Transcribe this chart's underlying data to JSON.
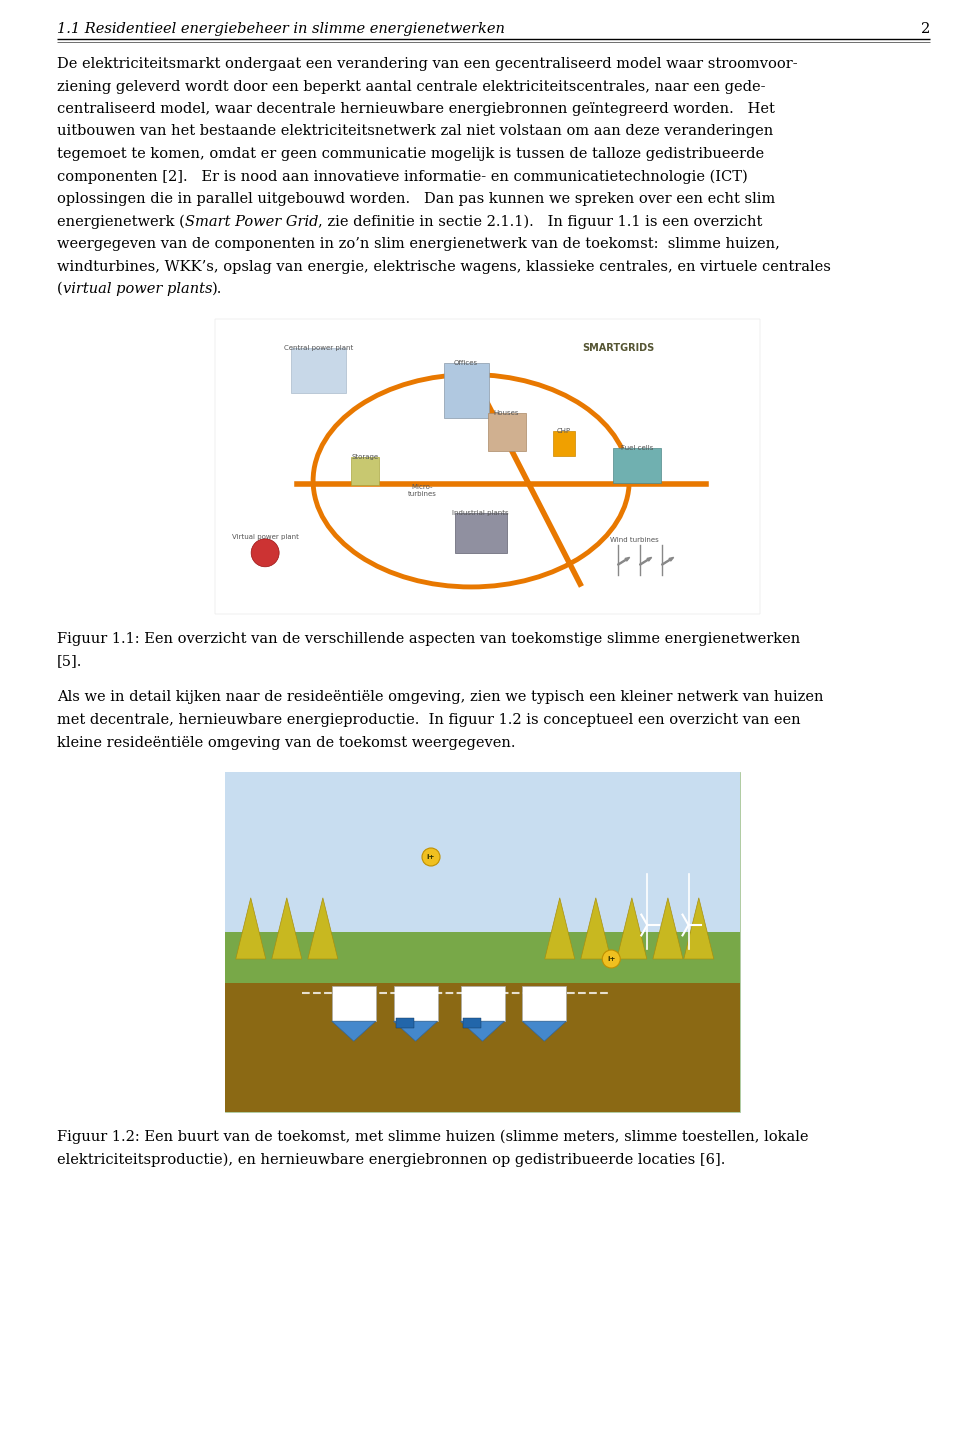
{
  "bg_color": "#ffffff",
  "header_title": "1.1 Residentieel energiebeheer in slimme energienetwerken",
  "header_page": "2",
  "header_fontsize": 10.5,
  "body_fontsize": 10.5,
  "para1_lines": [
    [
      "De elektriciteitsmarkt ondergaat een verandering van een gecentraliseerd model waar stroomvoor-",
      false
    ],
    [
      "ziening geleverd wordt door een beperkt aantal centrale elektriciteitscentrales, naar een gede-",
      false
    ],
    [
      "centraliseerd model, waar decentrale hernieuwbare energiebronnen geïntegreerd worden.   Het",
      false
    ],
    [
      "uitbouwen van het bestaande elektriciteitsnetwerk zal niet volstaan om aan deze veranderingen",
      false
    ],
    [
      "tegemoet te komen, omdat er geen communicatie mogelijk is tussen de talloze gedistribueerde",
      false
    ],
    [
      "componenten [2].   Er is nood aan innovatieve informatie- en communicatietechnologie (ICT)",
      false
    ],
    [
      "oplossingen die in parallel uitgebouwd worden.   Dan pas kunnen we spreken over een echt slim",
      false
    ]
  ],
  "para1_italic_lines": [
    [
      [
        "energienetwerk (",
        false
      ],
      [
        "Smart Power Grid",
        true
      ],
      [
        ", zie definitie in sectie 2.1.1).   In figuur 1.1 is een overzicht",
        false
      ]
    ],
    [
      [
        "weergegeven van de componenten in zo’n slim energienetwerk van de toekomst:  slimme huizen,",
        false
      ]
    ],
    [
      [
        "windturbines, WKK’s, opslag van energie, elektrische wagens, klassieke centrales, en virtuele centrales",
        false
      ]
    ],
    [
      [
        "(",
        false
      ],
      [
        "virtual power plants",
        true
      ],
      [
        ").",
        false
      ]
    ]
  ],
  "fig1_caption_lines": [
    "Figuur 1.1: Een overzicht van de verschillende aspecten van toekomstige slimme energienetwerken",
    "[5]."
  ],
  "para2_lines": [
    "Als we in detail kijken naar de resideëntiële omgeving, zien we typisch een kleiner netwerk van huizen",
    "met decentrale, hernieuwbare energieproductie.  In figuur 1.2 is conceptueel een overzicht van een",
    "kleine resideëntiële omgeving van de toekomst weergegeven."
  ],
  "fig2_caption_lines": [
    "Figuur 1.2: Een buurt van de toekomst, met slimme huizen (slimme meters, slimme toestellen, lokale",
    "elektriciteitsproductie), en hernieuwbare energiebronnen op gedistribueerde locaties [6]."
  ],
  "text_color": "#000000",
  "line_color": "#000000",
  "fig1_img_url": "https://upload.wikimedia.org/wikipedia/commons/thumb/1/13/SmartGrid.jpg/640px-SmartGrid.jpg",
  "fig2_img_url": "https://upload.wikimedia.org/wikipedia/commons/thumb/8/87/STS9_ISSRobotArm.jpg/320px-STS9_ISSRobotArm.jpg"
}
